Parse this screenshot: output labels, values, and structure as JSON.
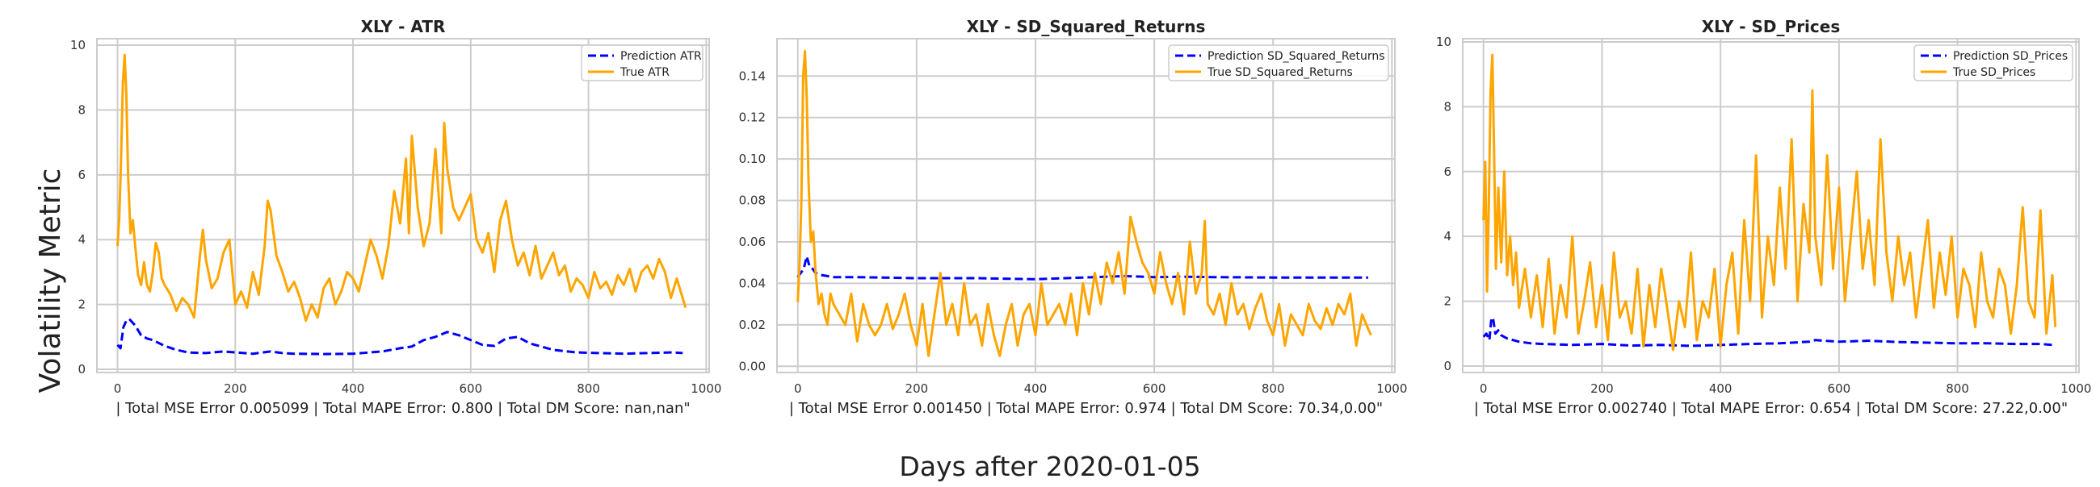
{
  "figure": {
    "ylabel": "Volatility Metric",
    "xlabel": "Days after 2020-01-05"
  },
  "chart_data": [
    {
      "type": "line",
      "title": "XLY - ATR",
      "xlabel": "| Total MSE Error 0.005099 | Total MAPE Error: 0.800 | Total DM Score: nan,nan\"",
      "ylabel": "",
      "xlim": [
        -35,
        1005
      ],
      "ylim": [
        -0.1,
        10.2
      ],
      "xticks": [
        0,
        200,
        400,
        600,
        800,
        1000
      ],
      "yticks": [
        0,
        2,
        4,
        6,
        8,
        10
      ],
      "ytick_decimals": 0,
      "grid": true,
      "legend": "upper right",
      "series": [
        {
          "name": "Prediction ATR",
          "color": "#0000ff",
          "style": "dashed",
          "x": [
            0,
            5,
            10,
            15,
            20,
            30,
            40,
            50,
            60,
            80,
            100,
            120,
            150,
            180,
            200,
            230,
            260,
            280,
            300,
            350,
            400,
            450,
            480,
            500,
            520,
            540,
            560,
            580,
            600,
            620,
            640,
            660,
            680,
            700,
            740,
            780,
            820,
            860,
            900,
            940,
            960
          ],
          "values": [
            0.75,
            0.65,
            1.3,
            1.5,
            1.55,
            1.35,
            1.05,
            0.95,
            0.9,
            0.72,
            0.6,
            0.52,
            0.5,
            0.55,
            0.52,
            0.48,
            0.55,
            0.5,
            0.48,
            0.47,
            0.48,
            0.55,
            0.65,
            0.7,
            0.9,
            1.0,
            1.15,
            1.05,
            0.9,
            0.75,
            0.72,
            0.95,
            1.0,
            0.8,
            0.6,
            0.52,
            0.5,
            0.48,
            0.5,
            0.52,
            0.5
          ]
        },
        {
          "name": "True ATR",
          "color": "#ffa500",
          "style": "solid",
          "x": [
            0,
            3,
            6,
            9,
            12,
            15,
            18,
            22,
            26,
            30,
            35,
            40,
            45,
            50,
            55,
            60,
            65,
            70,
            75,
            80,
            90,
            100,
            110,
            120,
            130,
            140,
            145,
            150,
            160,
            170,
            180,
            190,
            200,
            210,
            220,
            230,
            240,
            250,
            255,
            260,
            270,
            280,
            290,
            300,
            310,
            320,
            330,
            340,
            350,
            360,
            370,
            380,
            390,
            400,
            410,
            420,
            430,
            440,
            450,
            460,
            470,
            480,
            490,
            495,
            500,
            510,
            520,
            530,
            540,
            550,
            555,
            560,
            570,
            580,
            590,
            600,
            610,
            620,
            630,
            640,
            650,
            660,
            670,
            680,
            690,
            700,
            710,
            720,
            730,
            740,
            750,
            760,
            770,
            780,
            790,
            800,
            810,
            820,
            830,
            840,
            850,
            860,
            870,
            880,
            890,
            900,
            910,
            920,
            930,
            940,
            950,
            960,
            965
          ],
          "values": [
            3.8,
            4.7,
            6.5,
            8.8,
            9.7,
            8.5,
            6.0,
            4.2,
            4.6,
            3.8,
            2.9,
            2.6,
            3.3,
            2.6,
            2.4,
            3.0,
            3.9,
            3.6,
            2.8,
            2.6,
            2.3,
            1.8,
            2.2,
            2.0,
            1.6,
            3.5,
            4.3,
            3.4,
            2.5,
            2.8,
            3.6,
            4.0,
            2.0,
            2.4,
            1.9,
            3.0,
            2.3,
            3.8,
            5.2,
            4.9,
            3.5,
            3.0,
            2.4,
            2.7,
            2.2,
            1.5,
            2.0,
            1.6,
            2.5,
            2.8,
            2.0,
            2.4,
            3.0,
            2.8,
            2.4,
            3.2,
            4.0,
            3.5,
            2.8,
            3.8,
            5.5,
            4.5,
            6.5,
            4.2,
            7.2,
            5.0,
            3.8,
            4.5,
            6.8,
            4.2,
            7.6,
            6.2,
            5.0,
            4.6,
            5.0,
            5.4,
            4.0,
            3.6,
            4.2,
            3.0,
            4.6,
            5.2,
            4.0,
            3.2,
            3.6,
            2.9,
            3.8,
            2.8,
            3.2,
            3.6,
            2.9,
            3.2,
            2.4,
            2.8,
            2.6,
            2.2,
            3.0,
            2.5,
            2.7,
            2.3,
            2.9,
            2.6,
            3.1,
            2.4,
            3.0,
            3.2,
            2.8,
            3.4,
            3.0,
            2.2,
            2.8,
            2.2,
            1.9
          ]
        }
      ]
    },
    {
      "type": "line",
      "title": "XLY - SD_Squared_Returns",
      "xlabel": "| Total MSE Error 0.001450 | Total MAPE Error: 0.974 | Total DM Score: 70.34,0.00\"",
      "ylabel": "",
      "xlim": [
        -35,
        1005
      ],
      "ylim": [
        -0.003,
        0.158
      ],
      "xticks": [
        0,
        200,
        400,
        600,
        800,
        1000
      ],
      "yticks": [
        0.0,
        0.02,
        0.04,
        0.06,
        0.08,
        0.1,
        0.12,
        0.14
      ],
      "ytick_decimals": 2,
      "grid": true,
      "legend": "upper right",
      "series": [
        {
          "name": "Prediction SD_Squared_Returns",
          "color": "#0000ff",
          "style": "dashed",
          "x": [
            0,
            5,
            10,
            15,
            20,
            25,
            30,
            40,
            60,
            100,
            200,
            300,
            400,
            450,
            500,
            550,
            600,
            650,
            700,
            800,
            900,
            960
          ],
          "values": [
            0.043,
            0.045,
            0.047,
            0.053,
            0.048,
            0.047,
            0.045,
            0.044,
            0.043,
            0.043,
            0.0425,
            0.0425,
            0.042,
            0.0425,
            0.043,
            0.0435,
            0.043,
            0.0432,
            0.043,
            0.0428,
            0.0428,
            0.0428
          ]
        },
        {
          "name": "True SD_Squared_Returns",
          "color": "#ffa500",
          "style": "solid",
          "x": [
            0,
            3,
            6,
            9,
            12,
            15,
            18,
            22,
            26,
            30,
            35,
            40,
            45,
            50,
            55,
            60,
            70,
            80,
            90,
            100,
            110,
            120,
            130,
            140,
            150,
            160,
            170,
            180,
            190,
            200,
            210,
            220,
            230,
            240,
            250,
            260,
            270,
            280,
            290,
            300,
            310,
            320,
            330,
            340,
            350,
            360,
            370,
            380,
            390,
            400,
            410,
            420,
            430,
            440,
            450,
            460,
            470,
            480,
            490,
            500,
            510,
            520,
            530,
            540,
            550,
            560,
            570,
            580,
            590,
            600,
            610,
            620,
            630,
            640,
            650,
            660,
            670,
            680,
            685,
            690,
            700,
            710,
            720,
            730,
            740,
            750,
            760,
            770,
            780,
            790,
            800,
            810,
            820,
            830,
            840,
            850,
            860,
            870,
            880,
            890,
            900,
            910,
            920,
            930,
            940,
            950,
            960,
            965
          ],
          "values": [
            0.031,
            0.05,
            0.08,
            0.14,
            0.152,
            0.13,
            0.09,
            0.06,
            0.065,
            0.045,
            0.03,
            0.035,
            0.025,
            0.02,
            0.035,
            0.03,
            0.025,
            0.02,
            0.035,
            0.012,
            0.03,
            0.02,
            0.015,
            0.02,
            0.03,
            0.018,
            0.025,
            0.035,
            0.02,
            0.01,
            0.03,
            0.005,
            0.025,
            0.045,
            0.02,
            0.03,
            0.015,
            0.04,
            0.02,
            0.025,
            0.01,
            0.03,
            0.015,
            0.005,
            0.02,
            0.03,
            0.01,
            0.025,
            0.03,
            0.015,
            0.04,
            0.02,
            0.025,
            0.03,
            0.02,
            0.035,
            0.015,
            0.04,
            0.025,
            0.045,
            0.03,
            0.05,
            0.04,
            0.055,
            0.035,
            0.072,
            0.06,
            0.05,
            0.045,
            0.035,
            0.055,
            0.04,
            0.03,
            0.045,
            0.025,
            0.06,
            0.035,
            0.045,
            0.07,
            0.03,
            0.025,
            0.035,
            0.02,
            0.04,
            0.025,
            0.03,
            0.018,
            0.028,
            0.035,
            0.022,
            0.015,
            0.03,
            0.01,
            0.025,
            0.02,
            0.015,
            0.03,
            0.022,
            0.018,
            0.028,
            0.02,
            0.03,
            0.025,
            0.035,
            0.01,
            0.025,
            0.018,
            0.015
          ]
        }
      ]
    },
    {
      "type": "line",
      "title": "XLY - SD_Prices",
      "xlabel": "| Total MSE Error 0.002740 | Total MAPE Error: 0.654 | Total DM Score: 27.22,0.00\"",
      "ylabel": "",
      "xlim": [
        -35,
        1005
      ],
      "ylim": [
        -0.2,
        10.1
      ],
      "xticks": [
        0,
        200,
        400,
        600,
        800,
        1000
      ],
      "yticks": [
        0,
        2,
        4,
        6,
        8,
        10
      ],
      "ytick_decimals": 0,
      "grid": true,
      "legend": "upper right",
      "series": [
        {
          "name": "Prediction SD_Prices",
          "color": "#0000ff",
          "style": "dashed",
          "x": [
            0,
            5,
            10,
            13,
            16,
            20,
            25,
            30,
            40,
            60,
            80,
            100,
            150,
            200,
            250,
            300,
            350,
            400,
            450,
            500,
            550,
            560,
            600,
            650,
            700,
            750,
            800,
            850,
            900,
            940,
            960
          ],
          "values": [
            0.9,
            1.0,
            0.8,
            1.4,
            1.5,
            1.0,
            1.1,
            0.95,
            0.85,
            0.75,
            0.7,
            0.68,
            0.65,
            0.68,
            0.63,
            0.65,
            0.62,
            0.65,
            0.68,
            0.7,
            0.75,
            0.8,
            0.75,
            0.78,
            0.74,
            0.72,
            0.7,
            0.7,
            0.68,
            0.68,
            0.65
          ]
        },
        {
          "name": "True SD_Prices",
          "color": "#ffa500",
          "style": "solid",
          "x": [
            0,
            3,
            6,
            9,
            12,
            15,
            18,
            21,
            25,
            30,
            35,
            40,
            45,
            50,
            55,
            60,
            70,
            80,
            90,
            100,
            110,
            120,
            130,
            140,
            150,
            160,
            170,
            180,
            190,
            200,
            210,
            220,
            230,
            240,
            250,
            260,
            270,
            280,
            290,
            300,
            310,
            320,
            330,
            340,
            350,
            360,
            370,
            380,
            390,
            400,
            410,
            420,
            430,
            440,
            450,
            460,
            470,
            480,
            490,
            500,
            510,
            520,
            530,
            540,
            550,
            555,
            560,
            570,
            580,
            590,
            600,
            610,
            620,
            630,
            640,
            650,
            660,
            670,
            680,
            690,
            700,
            710,
            720,
            730,
            740,
            750,
            760,
            770,
            780,
            790,
            800,
            810,
            820,
            830,
            840,
            850,
            860,
            870,
            880,
            890,
            900,
            910,
            920,
            930,
            940,
            950,
            960,
            965
          ],
          "values": [
            4.5,
            6.3,
            2.3,
            5.0,
            8.5,
            9.6,
            6.5,
            3.0,
            5.5,
            3.2,
            6.0,
            2.8,
            4.0,
            2.5,
            3.5,
            1.8,
            3.0,
            1.5,
            2.8,
            1.2,
            3.3,
            1.0,
            2.5,
            1.5,
            4.0,
            1.0,
            2.0,
            3.2,
            1.2,
            2.5,
            0.8,
            3.5,
            1.5,
            2.0,
            1.0,
            3.0,
            0.6,
            2.5,
            1.2,
            3.0,
            1.8,
            0.5,
            2.0,
            1.2,
            3.5,
            0.8,
            2.0,
            1.5,
            3.0,
            0.6,
            2.5,
            3.5,
            1.0,
            4.5,
            2.0,
            6.5,
            1.5,
            4.0,
            2.5,
            5.5,
            3.0,
            7.0,
            2.0,
            5.0,
            3.5,
            8.5,
            4.0,
            2.5,
            6.5,
            3.0,
            5.5,
            2.0,
            4.0,
            6.0,
            3.0,
            4.5,
            2.5,
            7.0,
            3.5,
            2.0,
            4.0,
            2.5,
            3.5,
            1.5,
            3.0,
            4.5,
            1.8,
            3.5,
            2.2,
            4.0,
            1.5,
            3.0,
            2.5,
            1.2,
            3.5,
            2.0,
            1.5,
            3.0,
            2.5,
            1.0,
            2.5,
            4.9,
            2.0,
            1.5,
            4.8,
            1.0,
            2.8,
            1.2
          ]
        }
      ]
    }
  ]
}
